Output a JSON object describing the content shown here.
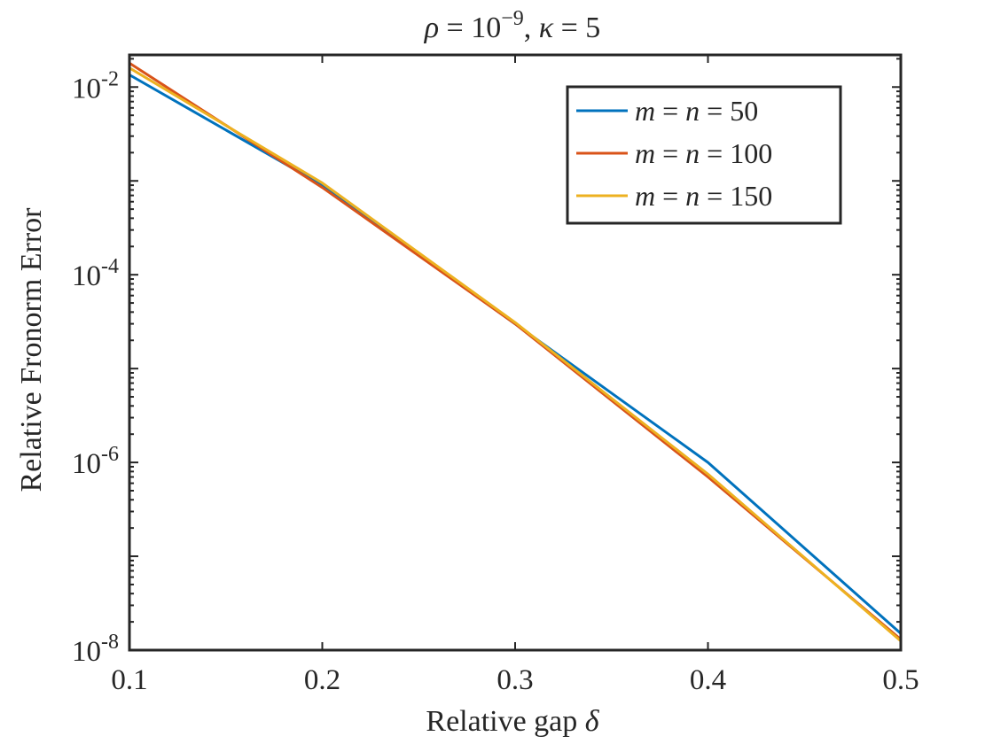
{
  "chart_data": {
    "type": "line",
    "title": {
      "rho": "ρ",
      "eq1": " = 10",
      "exp": "−9",
      "comma": ", ",
      "kappa": "κ",
      "eq2": " = 5"
    },
    "xlabel": {
      "text": "Relative gap ",
      "symbol": "δ"
    },
    "ylabel": "Relative Fronorm Error",
    "x_scale": "linear",
    "y_scale": "log",
    "xlim": [
      0.1,
      0.5
    ],
    "ylim": [
      1e-08,
      0.022
    ],
    "x_ticks": [
      0.1,
      0.2,
      0.3,
      0.4,
      0.5
    ],
    "x_tick_labels": [
      "0.1",
      "0.2",
      "0.3",
      "0.4",
      "0.5"
    ],
    "y_ticks": [
      {
        "base": "10",
        "exp": "-8",
        "value": 1e-08
      },
      {
        "base": "10",
        "exp": "-6",
        "value": 1e-06
      },
      {
        "base": "10",
        "exp": "-4",
        "value": 0.0001
      },
      {
        "base": "10",
        "exp": "-2",
        "value": 0.01
      }
    ],
    "grid": false,
    "legend_position": "top-right",
    "x": [
      0.1,
      0.2,
      0.3,
      0.4,
      0.5
    ],
    "series": [
      {
        "label": {
          "m": "m",
          "eq1": " = ",
          "n": "n",
          "eq2": " = ",
          "num": "50"
        },
        "color": "#0072BD",
        "values": [
          0.0135,
          0.0009,
          3e-05,
          1e-06,
          1.5e-08
        ]
      },
      {
        "label": {
          "m": "m",
          "eq1": " = ",
          "n": "n",
          "eq2": " = ",
          "num": "100"
        },
        "color": "#D95319",
        "values": [
          0.018,
          0.00085,
          3e-05,
          7e-07,
          1.3e-08
        ]
      },
      {
        "label": {
          "m": "m",
          "eq1": " = ",
          "n": "n",
          "eq2": " = ",
          "num": "150"
        },
        "color": "#EDB120",
        "values": [
          0.016,
          0.00095,
          3.1e-05,
          7.5e-07,
          1.25e-08
        ]
      }
    ]
  }
}
